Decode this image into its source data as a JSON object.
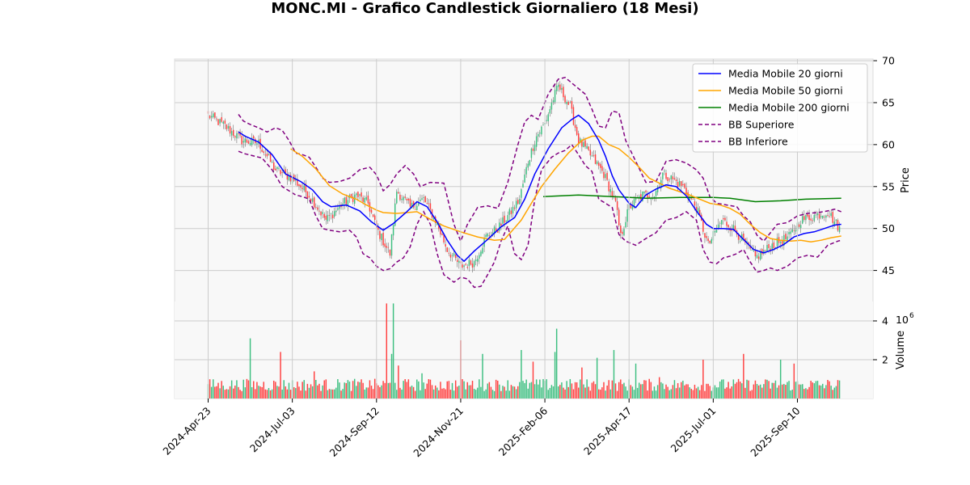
{
  "chart_data": {
    "type": "candlestick",
    "title": "MONC.MI - Grafico Candlestick Giornaliero (18 Mesi)",
    "price_axis": {
      "label": "Price",
      "ylim": [
        41.3,
        70.2
      ],
      "ticks": [
        45,
        50,
        55,
        60,
        65,
        70
      ],
      "position": "right"
    },
    "volume_axis": {
      "label": "Volume",
      "exponent_label": "6",
      "ylim": [
        0,
        5.0
      ],
      "ticks": [
        2,
        4
      ],
      "tick_labels": [
        "2",
        "4"
      ]
    },
    "x_axis": {
      "tick_labels": [
        "2024-Apr-23",
        "2024-Jul-03",
        "2024-Sep-12",
        "2024-Nov-21",
        "2025-Feb-06",
        "2025-Apr-17",
        "2025-Jul-01",
        "2025-Sep-10"
      ],
      "tick_index": [
        0,
        50,
        100,
        150,
        200,
        250,
        300,
        350
      ],
      "bar_count": 376
    },
    "grid": true,
    "legend": {
      "position": "top-right",
      "entries": [
        {
          "label": "Media Mobile 20 giorni",
          "color": "#0000ff",
          "dashed": false
        },
        {
          "label": "Media Mobile 50 giorni",
          "color": "#ffa500",
          "dashed": false
        },
        {
          "label": "Media Mobile 200 giorni",
          "color": "#008000",
          "dashed": false
        },
        {
          "label": "BB Superiore",
          "color": "#800080",
          "dashed": true
        },
        {
          "label": "BB Inferiore",
          "color": "#800080",
          "dashed": true
        }
      ]
    },
    "colors": {
      "up": "#3dbf80",
      "down": "#ff4040",
      "grid": "#cccccc",
      "plot_bg": "#f8f8f8"
    },
    "price_keypoints": [
      [
        0,
        63.5
      ],
      [
        10,
        62.2
      ],
      [
        20,
        60.5
      ],
      [
        30,
        60.2
      ],
      [
        40,
        57.0
      ],
      [
        50,
        56.0
      ],
      [
        60,
        54.0
      ],
      [
        70,
        51.0
      ],
      [
        80,
        53.0
      ],
      [
        88,
        54.0
      ],
      [
        95,
        53.0
      ],
      [
        100,
        50.0
      ],
      [
        108,
        47.0
      ],
      [
        112,
        54.5
      ],
      [
        120,
        52.5
      ],
      [
        128,
        53.5
      ],
      [
        135,
        51.0
      ],
      [
        142,
        47.5
      ],
      [
        150,
        45.5
      ],
      [
        158,
        46.0
      ],
      [
        165,
        49.0
      ],
      [
        172,
        50.0
      ],
      [
        180,
        52.0
      ],
      [
        185,
        53.5
      ],
      [
        190,
        58.0
      ],
      [
        195,
        61.0
      ],
      [
        200,
        62.5
      ],
      [
        205,
        65.5
      ],
      [
        208,
        67.0
      ],
      [
        215,
        64.5
      ],
      [
        220,
        60.5
      ],
      [
        228,
        58.5
      ],
      [
        235,
        56.5
      ],
      [
        242,
        53.0
      ],
      [
        245,
        49.0
      ],
      [
        250,
        52.5
      ],
      [
        258,
        54.0
      ],
      [
        265,
        54.0
      ],
      [
        270,
        56.5
      ],
      [
        275,
        56.0
      ],
      [
        282,
        55.0
      ],
      [
        290,
        52.5
      ],
      [
        297,
        48.0
      ],
      [
        305,
        51.0
      ],
      [
        312,
        50.0
      ],
      [
        318,
        48.5
      ],
      [
        325,
        46.5
      ],
      [
        335,
        48.0
      ],
      [
        345,
        49.0
      ],
      [
        352,
        51.0
      ],
      [
        360,
        51.5
      ],
      [
        368,
        52.0
      ],
      [
        375,
        50.0
      ]
    ],
    "ma20_points": [
      [
        18,
        61.5
      ],
      [
        22,
        61.0
      ],
      [
        30,
        60.3
      ],
      [
        38,
        58.8
      ],
      [
        46,
        56.5
      ],
      [
        55,
        55.6
      ],
      [
        62,
        54.6
      ],
      [
        68,
        53.2
      ],
      [
        73,
        52.6
      ],
      [
        82,
        52.8
      ],
      [
        90,
        52.1
      ],
      [
        97,
        50.8
      ],
      [
        104,
        49.8
      ],
      [
        110,
        50.6
      ],
      [
        118,
        52.0
      ],
      [
        124,
        53.2
      ],
      [
        130,
        52.6
      ],
      [
        136,
        50.8
      ],
      [
        142,
        48.6
      ],
      [
        148,
        46.8
      ],
      [
        152,
        46.1
      ],
      [
        158,
        47.3
      ],
      [
        166,
        48.7
      ],
      [
        174,
        50.2
      ],
      [
        182,
        51.3
      ],
      [
        188,
        53.5
      ],
      [
        194,
        56.5
      ],
      [
        202,
        59.5
      ],
      [
        210,
        62.0
      ],
      [
        216,
        63.0
      ],
      [
        220,
        63.5
      ],
      [
        226,
        62.5
      ],
      [
        232,
        60.5
      ],
      [
        236,
        58.6
      ],
      [
        240,
        56.3
      ],
      [
        244,
        54.6
      ],
      [
        250,
        53.0
      ],
      [
        254,
        52.5
      ],
      [
        260,
        54.0
      ],
      [
        266,
        54.7
      ],
      [
        272,
        55.2
      ],
      [
        278,
        55.0
      ],
      [
        284,
        53.9
      ],
      [
        290,
        52.1
      ],
      [
        296,
        50.5
      ],
      [
        300,
        50.0
      ],
      [
        306,
        50.0
      ],
      [
        312,
        49.9
      ],
      [
        318,
        48.7
      ],
      [
        324,
        47.5
      ],
      [
        330,
        47.1
      ],
      [
        336,
        47.5
      ],
      [
        342,
        48.1
      ],
      [
        348,
        49.0
      ],
      [
        354,
        49.4
      ],
      [
        360,
        49.6
      ],
      [
        366,
        50.0
      ],
      [
        372,
        50.4
      ],
      [
        376,
        50.5
      ]
    ],
    "ma50_points": [
      [
        49,
        59.5
      ],
      [
        56,
        58.6
      ],
      [
        64,
        57.1
      ],
      [
        72,
        55.1
      ],
      [
        80,
        54.1
      ],
      [
        88,
        53.5
      ],
      [
        94,
        52.8
      ],
      [
        100,
        52.2
      ],
      [
        104,
        51.9
      ],
      [
        112,
        51.8
      ],
      [
        118,
        51.9
      ],
      [
        124,
        52.0
      ],
      [
        132,
        51.1
      ],
      [
        140,
        50.3
      ],
      [
        150,
        49.6
      ],
      [
        160,
        49.0
      ],
      [
        170,
        48.6
      ],
      [
        176,
        48.7
      ],
      [
        180,
        49.6
      ],
      [
        186,
        51.0
      ],
      [
        192,
        53.0
      ],
      [
        198,
        55.0
      ],
      [
        206,
        57.1
      ],
      [
        214,
        59.0
      ],
      [
        222,
        60.5
      ],
      [
        228,
        61.0
      ],
      [
        232,
        61.0
      ],
      [
        238,
        60.0
      ],
      [
        244,
        59.5
      ],
      [
        250,
        58.5
      ],
      [
        256,
        57.3
      ],
      [
        262,
        56.0
      ],
      [
        268,
        55.4
      ],
      [
        274,
        54.8
      ],
      [
        280,
        54.4
      ],
      [
        286,
        54.0
      ],
      [
        292,
        53.5
      ],
      [
        298,
        53.0
      ],
      [
        304,
        52.8
      ],
      [
        310,
        52.4
      ],
      [
        316,
        51.7
      ],
      [
        322,
        50.5
      ],
      [
        328,
        49.5
      ],
      [
        334,
        48.8
      ],
      [
        340,
        48.6
      ],
      [
        346,
        48.5
      ],
      [
        352,
        48.6
      ],
      [
        358,
        48.4
      ],
      [
        364,
        48.6
      ],
      [
        370,
        48.9
      ],
      [
        376,
        49.1
      ]
    ],
    "ma200_points": [
      [
        199,
        53.8
      ],
      [
        220,
        54.0
      ],
      [
        240,
        53.8
      ],
      [
        260,
        53.6
      ],
      [
        280,
        53.7
      ],
      [
        300,
        53.7
      ],
      [
        310,
        53.6
      ],
      [
        325,
        53.2
      ],
      [
        340,
        53.3
      ],
      [
        355,
        53.5
      ],
      [
        376,
        53.6
      ]
    ],
    "bb_upper_points": [
      [
        18,
        63.6
      ],
      [
        21,
        62.8
      ],
      [
        25,
        62.4
      ],
      [
        30,
        62.0
      ],
      [
        35,
        61.5
      ],
      [
        40,
        62.0
      ],
      [
        44,
        61.7
      ],
      [
        48,
        60.5
      ],
      [
        52,
        59.0
      ],
      [
        56,
        58.8
      ],
      [
        60,
        58.5
      ],
      [
        64,
        57.3
      ],
      [
        68,
        56.0
      ],
      [
        72,
        55.5
      ],
      [
        78,
        55.6
      ],
      [
        84,
        56.0
      ],
      [
        90,
        57.0
      ],
      [
        96,
        57.3
      ],
      [
        100,
        56.4
      ],
      [
        104,
        54.5
      ],
      [
        108,
        55.2
      ],
      [
        112,
        56.5
      ],
      [
        117,
        57.5
      ],
      [
        122,
        56.5
      ],
      [
        126,
        55.0
      ],
      [
        132,
        55.5
      ],
      [
        140,
        55.4
      ],
      [
        146,
        50.5
      ],
      [
        150,
        48.5
      ],
      [
        154,
        50.5
      ],
      [
        160,
        52.5
      ],
      [
        166,
        52.7
      ],
      [
        172,
        52.4
      ],
      [
        178,
        55.5
      ],
      [
        184,
        60.0
      ],
      [
        188,
        62.7
      ],
      [
        192,
        63.5
      ],
      [
        196,
        63.0
      ],
      [
        202,
        66.0
      ],
      [
        208,
        67.8
      ],
      [
        212,
        68.0
      ],
      [
        218,
        67.0
      ],
      [
        224,
        66.0
      ],
      [
        228,
        64.2
      ],
      [
        232,
        62.2
      ],
      [
        236,
        62.0
      ],
      [
        240,
        64.0
      ],
      [
        244,
        63.8
      ],
      [
        248,
        60.5
      ],
      [
        254,
        58.0
      ],
      [
        260,
        55.5
      ],
      [
        266,
        55.6
      ],
      [
        272,
        58.0
      ],
      [
        278,
        58.2
      ],
      [
        284,
        57.8
      ],
      [
        290,
        57.0
      ],
      [
        294,
        56.0
      ],
      [
        298,
        53.8
      ],
      [
        302,
        53.0
      ],
      [
        308,
        52.8
      ],
      [
        314,
        52.6
      ],
      [
        318,
        51.5
      ],
      [
        322,
        50.8
      ],
      [
        326,
        49.2
      ],
      [
        330,
        48.5
      ],
      [
        334,
        49.5
      ],
      [
        338,
        50.5
      ],
      [
        344,
        50.7
      ],
      [
        350,
        51.5
      ],
      [
        356,
        51.8
      ],
      [
        362,
        51.9
      ],
      [
        368,
        52.1
      ],
      [
        372,
        52.3
      ],
      [
        376,
        52.0
      ]
    ],
    "bb_lower_points": [
      [
        18,
        59.2
      ],
      [
        22,
        58.9
      ],
      [
        28,
        58.6
      ],
      [
        32,
        58.4
      ],
      [
        38,
        57.0
      ],
      [
        44,
        55.0
      ],
      [
        48,
        54.5
      ],
      [
        52,
        54.0
      ],
      [
        56,
        53.8
      ],
      [
        60,
        53.5
      ],
      [
        64,
        51.5
      ],
      [
        68,
        50.0
      ],
      [
        72,
        49.8
      ],
      [
        78,
        49.6
      ],
      [
        84,
        49.8
      ],
      [
        88,
        49.0
      ],
      [
        92,
        47.0
      ],
      [
        96,
        46.5
      ],
      [
        100,
        45.5
      ],
      [
        104,
        45.0
      ],
      [
        108,
        45.2
      ],
      [
        112,
        46.0
      ],
      [
        116,
        46.5
      ],
      [
        120,
        47.8
      ],
      [
        124,
        50.5
      ],
      [
        128,
        52.0
      ],
      [
        132,
        50.5
      ],
      [
        136,
        47.0
      ],
      [
        140,
        44.5
      ],
      [
        146,
        43.6
      ],
      [
        150,
        44.2
      ],
      [
        154,
        44.0
      ],
      [
        158,
        43.0
      ],
      [
        162,
        43.1
      ],
      [
        166,
        44.5
      ],
      [
        170,
        46.0
      ],
      [
        174,
        48.5
      ],
      [
        178,
        50.3
      ],
      [
        182,
        47.0
      ],
      [
        186,
        46.3
      ],
      [
        190,
        48.0
      ],
      [
        194,
        53.5
      ],
      [
        198,
        57.0
      ],
      [
        204,
        58.5
      ],
      [
        208,
        59.0
      ],
      [
        212,
        59.3
      ],
      [
        216,
        60.0
      ],
      [
        220,
        58.8
      ],
      [
        224,
        57.5
      ],
      [
        228,
        56.8
      ],
      [
        232,
        53.5
      ],
      [
        236,
        53.0
      ],
      [
        240,
        52.5
      ],
      [
        244,
        49.3
      ],
      [
        248,
        48.5
      ],
      [
        254,
        48.0
      ],
      [
        260,
        48.8
      ],
      [
        266,
        49.5
      ],
      [
        272,
        51.0
      ],
      [
        278,
        51.3
      ],
      [
        284,
        52.0
      ],
      [
        290,
        51.0
      ],
      [
        294,
        47.5
      ],
      [
        298,
        46.0
      ],
      [
        302,
        45.8
      ],
      [
        306,
        46.5
      ],
      [
        310,
        46.7
      ],
      [
        314,
        47.0
      ],
      [
        318,
        47.5
      ],
      [
        322,
        46.0
      ],
      [
        326,
        44.8
      ],
      [
        330,
        45.0
      ],
      [
        334,
        45.3
      ],
      [
        338,
        45.0
      ],
      [
        344,
        45.5
      ],
      [
        350,
        46.5
      ],
      [
        356,
        46.8
      ],
      [
        362,
        46.6
      ],
      [
        368,
        48.0
      ],
      [
        374,
        48.5
      ],
      [
        376,
        48.6
      ]
    ],
    "volume_spikes": [
      [
        25,
        3.1
      ],
      [
        43,
        2.4
      ],
      [
        63,
        1.4
      ],
      [
        106,
        4.9
      ],
      [
        110,
        4.9
      ],
      [
        109,
        2.3
      ],
      [
        113,
        1.7
      ],
      [
        127,
        1.3
      ],
      [
        150,
        3.0
      ],
      [
        163,
        2.3
      ],
      [
        186,
        2.5
      ],
      [
        193,
        1.9
      ],
      [
        207,
        3.6
      ],
      [
        206,
        2.4
      ],
      [
        222,
        1.6
      ],
      [
        231,
        2.1
      ],
      [
        241,
        2.5
      ],
      [
        254,
        1.8
      ],
      [
        268,
        1.1
      ],
      [
        294,
        2.0
      ],
      [
        318,
        2.3
      ],
      [
        340,
        2.0
      ],
      [
        348,
        1.8
      ]
    ],
    "volume_baseline": 0.85
  }
}
